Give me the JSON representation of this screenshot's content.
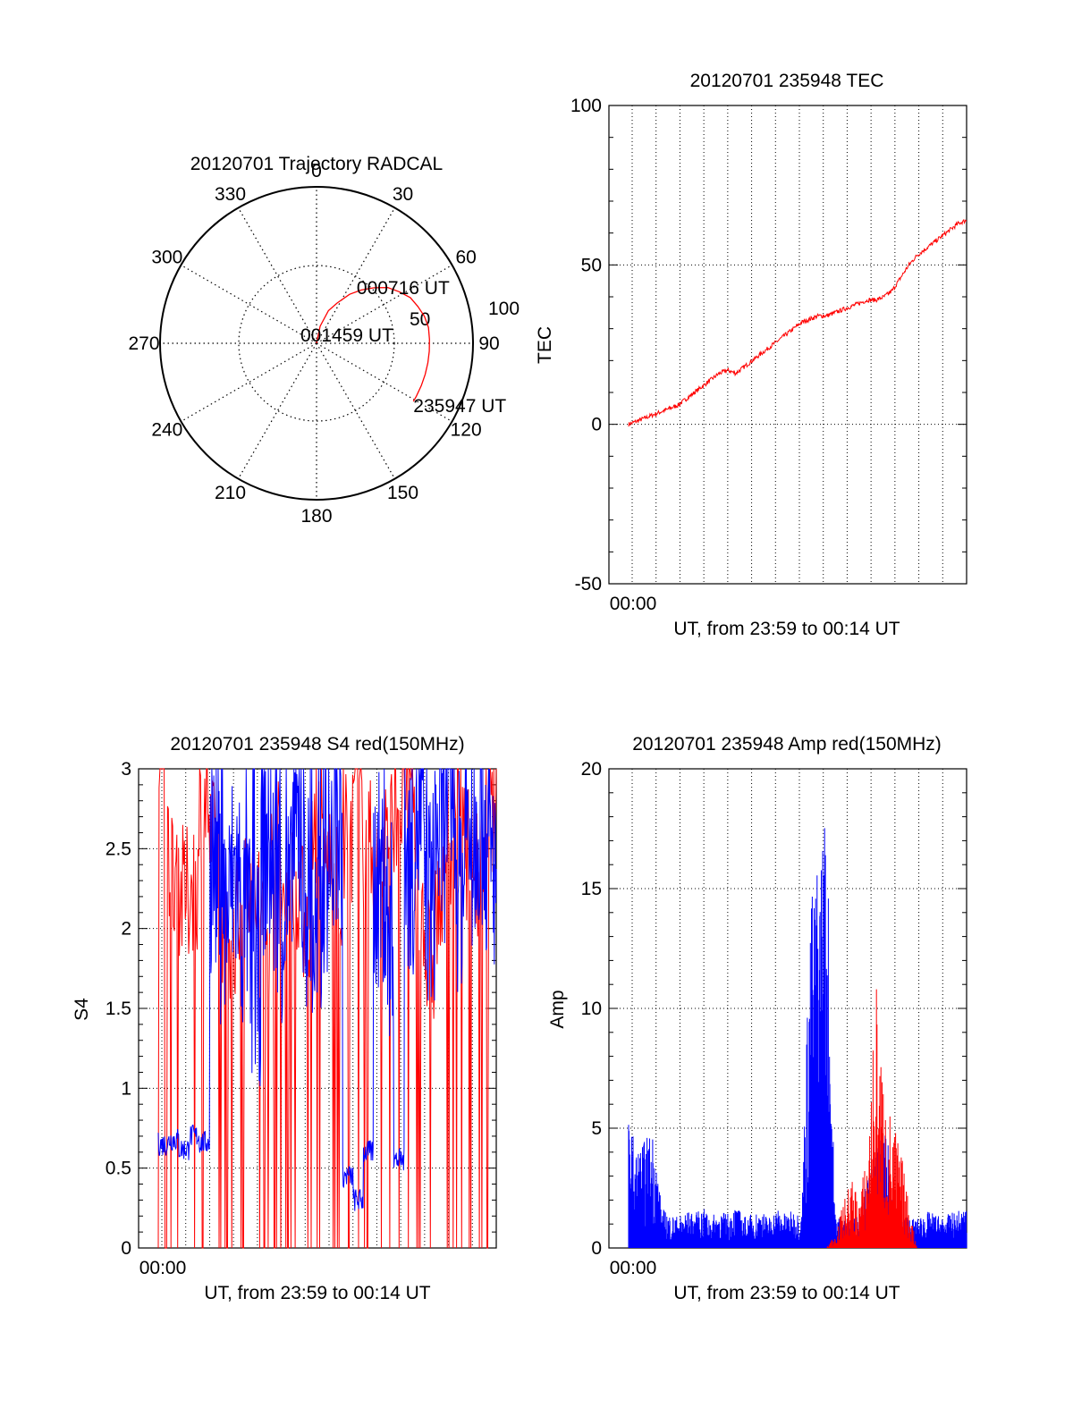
{
  "colors": {
    "red": "#ff0000",
    "blue": "#0000ff",
    "axis": "#000000"
  },
  "chart_data": [
    {
      "type": "polar",
      "title": "20120701 Trajectory RADCAL",
      "angle_labels": [
        "0",
        "30",
        "60",
        "90",
        "120",
        "150",
        "180",
        "210",
        "240",
        "270",
        "300",
        "330"
      ],
      "radius_labels": [
        "50",
        "100"
      ],
      "trajectory": {
        "points": [
          [
            5,
            90
          ],
          [
            12,
            80
          ],
          [
            20,
            70
          ],
          [
            27,
            64
          ],
          [
            34,
            56
          ],
          [
            40,
            50
          ],
          [
            46,
            44
          ],
          [
            52,
            38
          ],
          [
            58,
            34
          ],
          [
            64,
            30
          ],
          [
            70,
            28
          ],
          [
            76,
            26
          ],
          [
            82,
            25
          ],
          [
            88,
            25
          ],
          [
            94,
            25
          ],
          [
            100,
            25
          ],
          [
            106,
            25
          ],
          [
            112,
            25
          ],
          [
            118,
            25
          ],
          [
            121,
            25
          ]
        ],
        "labels": [
          {
            "text": "001459 UT",
            "az": 5,
            "el": 90
          },
          {
            "text": "000716 UT",
            "az": 64,
            "el": 30
          },
          {
            "text": "235947 UT",
            "az": 121,
            "el": 25
          }
        ]
      }
    },
    {
      "type": "line",
      "title": "20120701 235948 TEC",
      "xlabel": "UT, from 23:59 to 00:14 UT",
      "ylabel": "TEC",
      "xtick_labels": [
        "00:00"
      ],
      "ytick_labels": [
        "-50",
        "0",
        "50",
        "100"
      ],
      "ylim": [
        -50,
        100
      ],
      "grid": true,
      "series": [
        {
          "values": [
            0,
            1,
            2,
            3,
            4,
            5,
            6,
            8,
            10,
            12,
            14,
            16,
            17,
            16,
            18,
            20,
            22,
            24,
            26,
            28,
            30,
            32,
            33,
            34,
            34,
            35,
            36,
            37,
            38,
            39,
            39,
            40,
            42,
            46,
            50,
            53,
            55,
            57,
            59,
            61,
            63,
            64
          ]
        }
      ]
    },
    {
      "type": "line",
      "title": "20120701 235948 S4 red(150MHz)",
      "xlabel": "UT, from 23:59 to 00:14 UT",
      "ylabel": "S4",
      "xtick_labels": [
        "00:00"
      ],
      "ytick_labels": [
        "0",
        "0.5",
        "1",
        "1.5",
        "2",
        "2.5",
        "3"
      ],
      "ylim": [
        0,
        3
      ],
      "grid": true,
      "series": [
        {
          "values": [
            3,
            2.4,
            2.2,
            2.3,
            2.8,
            2.5,
            2.1,
            2.0,
            2.4,
            2.2,
            2.0,
            2.5,
            2.2,
            2.3,
            2.1,
            2.7,
            2.4,
            2.2,
            2.6,
            2.9,
            2.5,
            2.3,
            2.6,
            2.8,
            3,
            2.2,
            1.8,
            2.1,
            2.6,
            2.8,
            2.5,
            2.3,
            2.7,
            3
          ]
        },
        {
          "values": [
            0.65,
            0.68,
            0.62,
            0.7,
            0.66,
            2.4,
            2.1,
            2.3,
            2.0,
            1.7,
            2.5,
            2.3,
            2.1,
            2.6,
            2.2,
            1.9,
            2.4,
            2.6,
            0.45,
            0.3,
            0.6,
            2.3,
            2.0,
            0.55,
            2.4,
            2.7,
            2.2,
            2.6,
            2.9,
            2.3,
            2.5,
            2.7,
            2.4,
            2.6
          ]
        }
      ]
    },
    {
      "type": "area",
      "title": "20120701 235948 Amp red(150MHz)",
      "xlabel": "UT, from 23:59 to 00:14 UT",
      "ylabel": "Amp",
      "xtick_labels": [
        "00:00"
      ],
      "ytick_labels": [
        "0",
        "5",
        "10",
        "15",
        "20"
      ],
      "ylim": [
        0,
        20
      ],
      "grid": true,
      "series": [
        {
          "values": [
            0,
            0,
            0,
            0,
            0,
            0,
            0,
            0,
            0,
            0,
            0,
            0,
            0,
            0,
            0,
            0,
            0,
            0,
            0,
            0,
            0,
            0,
            0,
            0,
            0,
            0.5,
            1.5,
            2.5,
            1.8,
            3.5,
            9.5,
            5.5,
            4.5,
            3.5,
            1.5,
            0,
            0,
            0,
            0,
            0,
            0,
            0
          ]
        },
        {
          "values": [
            4.5,
            3.5,
            3.8,
            4.2,
            1.4,
            1.2,
            1.1,
            1.3,
            1.2,
            1.4,
            1.1,
            1.3,
            1.2,
            1.5,
            1.1,
            1.2,
            1.3,
            1.1,
            1.4,
            1.2,
            1.3,
            1.2,
            12,
            14,
            16,
            1.3,
            1.1,
            1.0,
            1.2,
            2.5,
            3.5,
            4.0,
            3.2,
            1.2,
            1.1,
            1.0,
            1.3,
            1.2,
            1.1,
            1.2,
            1.3,
            1.4
          ]
        }
      ]
    }
  ]
}
